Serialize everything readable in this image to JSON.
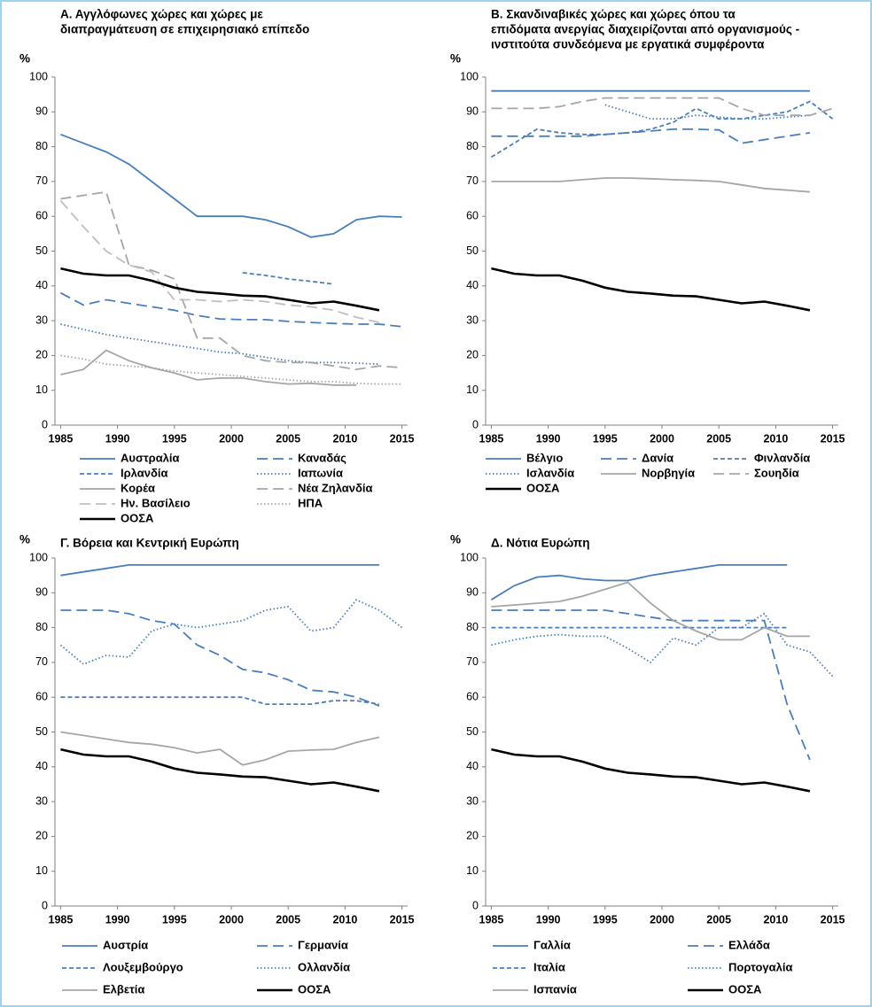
{
  "chart_data": [
    {
      "type": "line",
      "title": [
        "Α. Αγγλόφωνες χώρες και χώρες με",
        "διαπραγμάτευση σε επιχειρησιακό επίπεδο"
      ],
      "ylabel": "%",
      "x": [
        1985,
        1987,
        1989,
        1991,
        1993,
        1995,
        1997,
        1999,
        2001,
        2003,
        2005,
        2007,
        2009,
        2011,
        2013,
        2015
      ],
      "xlim": [
        1984.5,
        2015.5
      ],
      "xticks": [
        1985,
        1990,
        1995,
        2000,
        2005,
        2010,
        2015
      ],
      "ylim": [
        0,
        100
      ],
      "yticks": [
        0,
        10,
        20,
        30,
        40,
        50,
        60,
        70,
        80,
        90,
        100
      ],
      "series": [
        {
          "name": "Αυστραλία",
          "color": "#4a7ebb",
          "dash": "solid",
          "values": [
            83.5,
            81,
            78.5,
            75,
            70,
            65,
            60,
            60,
            60,
            59,
            57,
            54,
            55,
            59,
            60,
            59.8
          ]
        },
        {
          "name": "Καναδάς",
          "color": "#4a7ebb",
          "dash": "long",
          "values": [
            38,
            34.5,
            36,
            35,
            34,
            33,
            31.5,
            30.5,
            30.3,
            30.3,
            29.8,
            29.5,
            29.2,
            29,
            29,
            28.3
          ]
        },
        {
          "name": "Ιρλανδία",
          "color": "#4a7ebb",
          "dash": "short",
          "values": [
            null,
            null,
            null,
            null,
            null,
            null,
            null,
            null,
            43.8,
            43,
            42,
            41.3,
            40.5,
            null,
            null,
            null
          ]
        },
        {
          "name": "Ιαπωνία",
          "color": "#4a7ebb",
          "dash": "dot",
          "values": [
            29,
            27.5,
            26,
            25,
            24,
            23,
            22,
            21,
            20.5,
            19.5,
            18.5,
            18,
            18,
            17.8,
            17.5,
            null
          ]
        },
        {
          "name": "Κορέα",
          "color": "#a6a6a6",
          "dash": "solid",
          "values": [
            14.5,
            16,
            21.5,
            18.5,
            16.5,
            15,
            13,
            13.5,
            13.5,
            12.5,
            11.8,
            12,
            11.5,
            11.5,
            null,
            null
          ]
        },
        {
          "name": "Νέα Ζηλανδία",
          "color": "#a6a6a6",
          "dash": "long",
          "values": [
            65,
            66,
            67,
            46,
            44.5,
            42,
            25,
            25,
            20,
            18.5,
            18,
            18,
            17,
            16,
            17,
            16.5
          ]
        },
        {
          "name": "Ην. Βασίλειο",
          "color": "#bfbfbf",
          "dash": "long",
          "values": [
            64.5,
            57,
            50,
            46,
            44,
            36,
            36,
            35.5,
            36,
            35.5,
            34.5,
            34,
            33,
            31,
            29.5,
            null
          ]
        },
        {
          "name": "ΗΠΑ",
          "color": "#a6a6a6",
          "dash": "dot",
          "values": [
            20,
            19,
            17.5,
            17,
            16.5,
            15.5,
            15,
            14.5,
            14,
            13.5,
            13,
            12.5,
            12.5,
            12,
            11.8,
            11.8
          ]
        },
        {
          "name": "ΟΟΣΑ",
          "color": "#000000",
          "dash": "solid",
          "values": [
            45,
            43.5,
            43,
            43,
            41.5,
            39.5,
            38.3,
            37.8,
            37.2,
            37,
            36,
            35,
            35.5,
            34.3,
            33,
            null
          ]
        }
      ]
    },
    {
      "type": "line",
      "title": [
        "Β. Σκανδιναβικές χώρες και χώρες όπου τα",
        "επιδόματα ανεργίας διαχειρίζονται από οργανισμούς -",
        "ινστιτούτα συνδεόμενα με εργατικά συμφέροντα"
      ],
      "ylabel": "%",
      "x": [
        1985,
        1987,
        1989,
        1991,
        1993,
        1995,
        1997,
        1999,
        2001,
        2003,
        2005,
        2007,
        2009,
        2011,
        2013,
        2015
      ],
      "xlim": [
        1984.5,
        2015.5
      ],
      "xticks": [
        1985,
        1990,
        1995,
        2000,
        2005,
        2010,
        2015
      ],
      "ylim": [
        0,
        100
      ],
      "yticks": [
        0,
        10,
        20,
        30,
        40,
        50,
        60,
        70,
        80,
        90,
        100
      ],
      "series": [
        {
          "name": "Βέλγιο",
          "color": "#4a7ebb",
          "dash": "solid",
          "values": [
            96,
            96,
            96,
            96,
            96,
            96,
            96,
            96,
            96,
            96,
            96,
            96,
            96,
            96,
            96,
            null
          ]
        },
        {
          "name": "Δανία",
          "color": "#4a7ebb",
          "dash": "long",
          "values": [
            83,
            83,
            83,
            83,
            83,
            83.5,
            84,
            84.5,
            85,
            85,
            84.8,
            81,
            82,
            83,
            84,
            null
          ]
        },
        {
          "name": "Φινλανδία",
          "color": "#4a7ebb",
          "dash": "short",
          "values": [
            77,
            81,
            85,
            84,
            83.5,
            83.5,
            84,
            85,
            87,
            91,
            88,
            88,
            89,
            90,
            93,
            88
          ]
        },
        {
          "name": "Ισλανδία",
          "color": "#4a7ebb",
          "dash": "dot",
          "values": [
            null,
            null,
            null,
            null,
            null,
            92,
            90,
            88,
            88,
            89,
            88.5,
            88,
            88,
            88.5,
            89,
            null
          ]
        },
        {
          "name": "Νορβηγία",
          "color": "#a6a6a6",
          "dash": "solid",
          "values": [
            70,
            70,
            70,
            70,
            70.5,
            71,
            71,
            70.8,
            70.5,
            70.3,
            70,
            69,
            68,
            67.5,
            67,
            null
          ]
        },
        {
          "name": "Σουηδία",
          "color": "#a6a6a6",
          "dash": "long",
          "values": [
            91,
            91,
            91,
            91.5,
            93,
            94,
            94,
            94,
            94,
            94,
            94,
            91,
            89,
            89,
            89,
            91
          ]
        },
        {
          "name": "ΟΟΣΑ",
          "color": "#000000",
          "dash": "solid",
          "values": [
            45,
            43.5,
            43,
            43,
            41.5,
            39.5,
            38.3,
            37.8,
            37.2,
            37,
            36,
            35,
            35.5,
            34.3,
            33,
            null
          ]
        }
      ]
    },
    {
      "type": "line",
      "title": [
        "Γ. Βόρεια και Κεντρική Ευρώπη"
      ],
      "ylabel": "%",
      "x": [
        1985,
        1987,
        1989,
        1991,
        1993,
        1995,
        1997,
        1999,
        2001,
        2003,
        2005,
        2007,
        2009,
        2011,
        2013,
        2015
      ],
      "xlim": [
        1984.5,
        2015.5
      ],
      "xticks": [
        1985,
        1990,
        1995,
        2000,
        2005,
        2010,
        2015
      ],
      "ylim": [
        0,
        100
      ],
      "yticks": [
        0,
        10,
        20,
        30,
        40,
        50,
        60,
        70,
        80,
        90,
        100
      ],
      "series": [
        {
          "name": "Αυστρία",
          "color": "#4a7ebb",
          "dash": "solid",
          "values": [
            95,
            96,
            97,
            98,
            98,
            98,
            98,
            98,
            98,
            98,
            98,
            98,
            98,
            98,
            98,
            null
          ]
        },
        {
          "name": "Γερμανία",
          "color": "#4a7ebb",
          "dash": "long",
          "values": [
            85,
            85,
            85,
            84,
            82,
            81,
            75,
            72,
            68,
            67,
            65,
            62,
            61.5,
            60,
            57.5,
            null
          ]
        },
        {
          "name": "Λουξεμβούργο",
          "color": "#4a7ebb",
          "dash": "short",
          "values": [
            60,
            60,
            60,
            60,
            60,
            60,
            60,
            60,
            60,
            58,
            58,
            58,
            59,
            59,
            58,
            null
          ]
        },
        {
          "name": "Ολλανδία",
          "color": "#4a7ebb",
          "dash": "dot",
          "values": [
            75,
            69.5,
            72,
            71.5,
            79,
            81,
            80,
            81,
            82,
            85,
            86,
            79,
            80,
            88,
            85,
            80
          ]
        },
        {
          "name": "Ελβετία",
          "color": "#a6a6a6",
          "dash": "solid",
          "values": [
            50,
            49,
            48,
            47,
            46.5,
            45.5,
            44,
            45,
            40.5,
            42,
            44.5,
            44.8,
            45,
            47,
            48.5,
            null
          ]
        },
        {
          "name": "ΟΟΣΑ",
          "color": "#000000",
          "dash": "solid",
          "values": [
            45,
            43.5,
            43,
            43,
            41.5,
            39.5,
            38.3,
            37.8,
            37.2,
            37,
            36,
            35,
            35.5,
            34.3,
            33,
            null
          ]
        }
      ]
    },
    {
      "type": "line",
      "title": [
        "Δ. Νότια Ευρώπη"
      ],
      "ylabel": "%",
      "x": [
        1985,
        1987,
        1989,
        1991,
        1993,
        1995,
        1997,
        1999,
        2001,
        2003,
        2005,
        2007,
        2009,
        2011,
        2013,
        2015
      ],
      "xlim": [
        1984.5,
        2015.5
      ],
      "xticks": [
        1985,
        1990,
        1995,
        2000,
        2005,
        2010,
        2015
      ],
      "ylim": [
        0,
        100
      ],
      "yticks": [
        0,
        10,
        20,
        30,
        40,
        50,
        60,
        70,
        80,
        90,
        100
      ],
      "series": [
        {
          "name": "Γαλλία",
          "color": "#4a7ebb",
          "dash": "solid",
          "values": [
            88,
            92,
            94.5,
            95,
            94,
            93.5,
            93.5,
            95,
            96,
            97,
            98,
            98,
            98,
            98,
            null,
            null
          ]
        },
        {
          "name": "Ελλάδα",
          "color": "#4a7ebb",
          "dash": "long",
          "values": [
            85,
            85,
            85,
            85,
            85,
            85,
            84,
            83,
            82,
            82,
            82,
            82,
            82,
            58,
            42,
            null
          ]
        },
        {
          "name": "Ιταλία",
          "color": "#4a7ebb",
          "dash": "short",
          "values": [
            80,
            80,
            80,
            80,
            80,
            80,
            80,
            80,
            80,
            80,
            80,
            80,
            80,
            80,
            null,
            null
          ]
        },
        {
          "name": "Πορτογαλία",
          "color": "#4a7ebb",
          "dash": "dot",
          "values": [
            75,
            76.5,
            77.5,
            78,
            77.5,
            77.5,
            74,
            70,
            77,
            75,
            80,
            80,
            84,
            75,
            73,
            66
          ]
        },
        {
          "name": "Ισπανία",
          "color": "#a6a6a6",
          "dash": "solid",
          "values": [
            86,
            86.5,
            87,
            87.5,
            89,
            91,
            93,
            87,
            82,
            79,
            76.5,
            76.5,
            80,
            77.5,
            77.5,
            null
          ]
        },
        {
          "name": "ΟΟΣΑ",
          "color": "#000000",
          "dash": "solid",
          "values": [
            45,
            43.5,
            43,
            43,
            41.5,
            39.5,
            38.3,
            37.8,
            37.2,
            37,
            36,
            35,
            35.5,
            34.3,
            33,
            null
          ]
        }
      ]
    }
  ]
}
